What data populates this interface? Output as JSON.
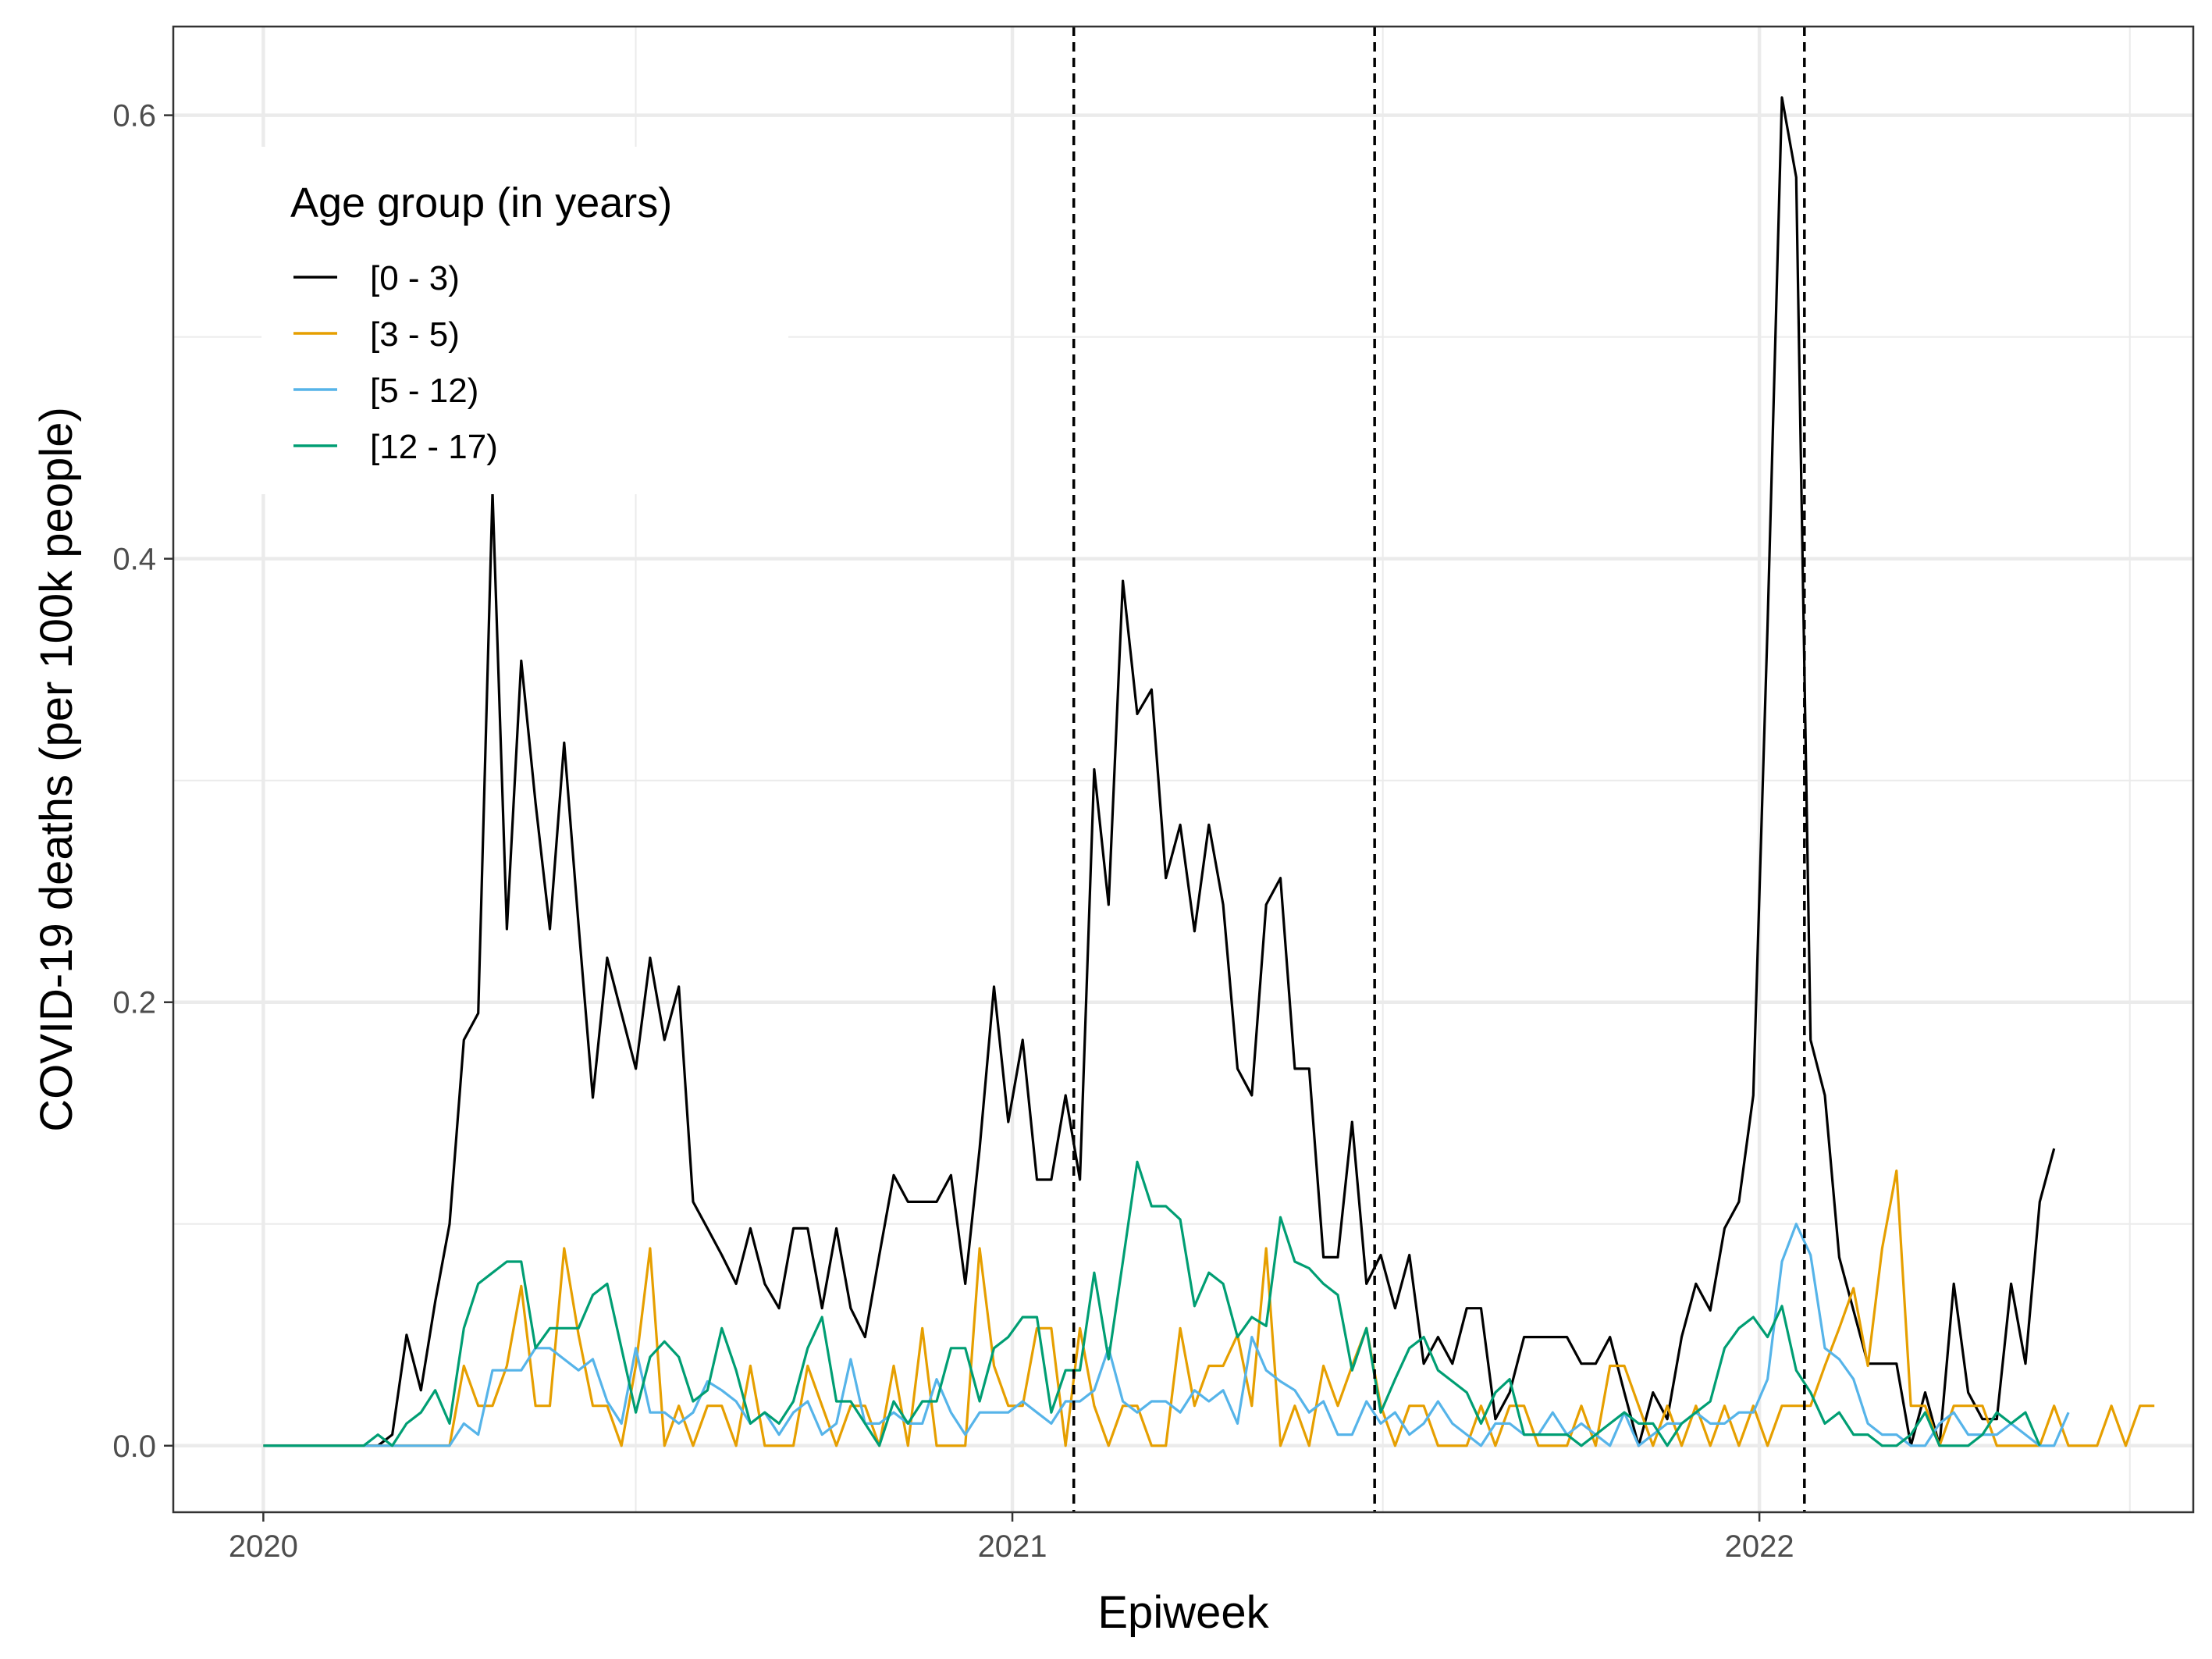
{
  "chart_data": {
    "type": "line",
    "xlabel": "Epiweek",
    "ylabel": "COVID-19 deaths (per 100k people)",
    "xlim": [
      "2019-11-18",
      "2022-08-01"
    ],
    "ylim": [
      -0.03,
      0.64
    ],
    "x_ticks": [
      {
        "date": "2020-01-01",
        "label": "2020"
      },
      {
        "date": "2021-01-01",
        "label": "2021"
      },
      {
        "date": "2022-01-01",
        "label": "2022"
      }
    ],
    "x_minor_ticks": [
      "2020-07-01",
      "2021-07-01",
      "2022-07-01"
    ],
    "y_ticks": [
      {
        "value": 0.0,
        "label": "0.0"
      },
      {
        "value": 0.2,
        "label": "0.2"
      },
      {
        "value": 0.4,
        "label": "0.4"
      },
      {
        "value": 0.6,
        "label": "0.6"
      }
    ],
    "y_minor_ticks": [
      0.1,
      0.3,
      0.5
    ],
    "grid": true,
    "vlines": [
      "2021-01-31",
      "2021-06-27",
      "2022-01-23"
    ],
    "legend": {
      "title": "Age group (in years)",
      "placement": "top-left",
      "entries": [
        "[0 - 3)",
        "[3 - 5)",
        "[5 - 12)",
        "[12 - 17)"
      ]
    },
    "x_start": "2020-01-01",
    "x_step_days": 7,
    "series": [
      {
        "name": "[0 - 3)",
        "color": "#000000",
        "values": [
          0,
          0,
          0,
          0,
          0,
          0,
          0,
          0,
          0,
          0.005,
          0.05,
          0.025,
          0.065,
          0.1,
          0.183,
          0.195,
          0.43,
          0.233,
          0.354,
          0.29,
          0.233,
          0.317,
          0.235,
          0.157,
          0.22,
          0.195,
          0.17,
          0.22,
          0.183,
          0.207,
          0.11,
          0.098,
          0.086,
          0.073,
          0.098,
          0.073,
          0.062,
          0.098,
          0.098,
          0.062,
          0.098,
          0.062,
          0.049,
          0.086,
          0.122,
          0.11,
          0.11,
          0.11,
          0.122,
          0.073,
          0.134,
          0.207,
          0.146,
          0.183,
          0.12,
          0.12,
          0.158,
          0.12,
          0.305,
          0.244,
          0.39,
          0.33,
          0.341,
          0.256,
          0.28,
          0.232,
          0.28,
          0.244,
          0.17,
          0.158,
          0.244,
          0.256,
          0.17,
          0.17,
          0.085,
          0.085,
          0.146,
          0.073,
          0.086,
          0.062,
          0.086,
          0.037,
          0.049,
          0.037,
          0.062,
          0.062,
          0.012,
          0.024,
          0.049,
          0.049,
          0.049,
          0.049,
          0.037,
          0.037,
          0.049,
          0.024,
          0.0,
          0.024,
          0.012,
          0.049,
          0.073,
          0.061,
          0.098,
          0.11,
          0.158,
          0.37,
          0.608,
          0.572,
          0.183,
          0.158,
          0.085,
          0.061,
          0.037,
          0.037,
          0.037,
          0.0,
          0.024,
          0.0,
          0.073,
          0.024,
          0.012,
          0.012,
          0.073,
          0.037,
          0.11,
          0.134
        ]
      },
      {
        "name": "[3 - 5)",
        "color": "#E69F00",
        "values": [
          0,
          0,
          0,
          0,
          0,
          0,
          0,
          0,
          0,
          0,
          0,
          0,
          0,
          0,
          0.036,
          0.018,
          0.018,
          0.036,
          0.072,
          0.018,
          0.018,
          0.089,
          0.05,
          0.018,
          0.018,
          0.0,
          0.036,
          0.089,
          0.0,
          0.018,
          0.0,
          0.018,
          0.018,
          0.0,
          0.036,
          0.0,
          0.0,
          0.0,
          0.036,
          0.018,
          0.0,
          0.018,
          0.018,
          0.0,
          0.036,
          0.0,
          0.053,
          0.0,
          0.0,
          0.0,
          0.089,
          0.036,
          0.018,
          0.018,
          0.053,
          0.053,
          0.0,
          0.053,
          0.018,
          0.0,
          0.018,
          0.018,
          0.0,
          0.0,
          0.053,
          0.018,
          0.036,
          0.036,
          0.05,
          0.018,
          0.089,
          0.0,
          0.018,
          0.0,
          0.036,
          0.018,
          0.036,
          0.053,
          0.018,
          0.0,
          0.018,
          0.018,
          0.0,
          0.0,
          0.0,
          0.018,
          0.0,
          0.018,
          0.018,
          0.0,
          0.0,
          0.0,
          0.018,
          0.0,
          0.036,
          0.036,
          0.018,
          0.0,
          0.018,
          0.0,
          0.018,
          0.0,
          0.018,
          0.0,
          0.018,
          0.0,
          0.018,
          0.018,
          0.018,
          0.036,
          0.053,
          0.071,
          0.036,
          0.089,
          0.124,
          0.018,
          0.018,
          0.0,
          0.018,
          0.018,
          0.018,
          0.0,
          0.0,
          0.0,
          0.0,
          0.018,
          0.0,
          0.0,
          0.0,
          0.018,
          0.0,
          0.018,
          0.018
        ]
      },
      {
        "name": "[5 - 12)",
        "color": "#56B4E9",
        "values": [
          0,
          0,
          0,
          0,
          0,
          0,
          0,
          0,
          0,
          0,
          0,
          0,
          0,
          0,
          0.01,
          0.005,
          0.034,
          0.034,
          0.034,
          0.044,
          0.044,
          0.039,
          0.034,
          0.039,
          0.02,
          0.01,
          0.044,
          0.015,
          0.015,
          0.01,
          0.015,
          0.029,
          0.025,
          0.02,
          0.01,
          0.015,
          0.005,
          0.015,
          0.02,
          0.005,
          0.01,
          0.039,
          0.01,
          0.01,
          0.015,
          0.01,
          0.01,
          0.03,
          0.015,
          0.005,
          0.015,
          0.015,
          0.015,
          0.02,
          0.015,
          0.01,
          0.02,
          0.02,
          0.025,
          0.044,
          0.02,
          0.015,
          0.02,
          0.02,
          0.015,
          0.025,
          0.02,
          0.025,
          0.01,
          0.049,
          0.034,
          0.029,
          0.025,
          0.015,
          0.02,
          0.005,
          0.005,
          0.02,
          0.01,
          0.015,
          0.005,
          0.01,
          0.02,
          0.01,
          0.005,
          0.0,
          0.01,
          0.01,
          0.005,
          0.005,
          0.015,
          0.005,
          0.01,
          0.005,
          0.0,
          0.015,
          0.0,
          0.005,
          0.01,
          0.01,
          0.015,
          0.01,
          0.01,
          0.015,
          0.015,
          0.03,
          0.083,
          0.1,
          0.086,
          0.044,
          0.039,
          0.03,
          0.01,
          0.005,
          0.005,
          0.0,
          0.0,
          0.01,
          0.015,
          0.005,
          0.005,
          0.005,
          0.01,
          0.005,
          0.0,
          0.0,
          0.015
        ]
      },
      {
        "name": "[12 - 17)",
        "color": "#009E73",
        "values": [
          0,
          0,
          0,
          0,
          0,
          0,
          0,
          0,
          0.005,
          0.0,
          0.01,
          0.015,
          0.025,
          0.01,
          0.053,
          0.073,
          0.078,
          0.083,
          0.083,
          0.044,
          0.053,
          0.053,
          0.053,
          0.068,
          0.073,
          0.044,
          0.015,
          0.04,
          0.047,
          0.04,
          0.02,
          0.025,
          0.053,
          0.034,
          0.01,
          0.015,
          0.01,
          0.02,
          0.044,
          0.058,
          0.02,
          0.02,
          0.01,
          0.0,
          0.02,
          0.01,
          0.02,
          0.02,
          0.044,
          0.044,
          0.02,
          0.044,
          0.049,
          0.058,
          0.058,
          0.015,
          0.034,
          0.034,
          0.078,
          0.039,
          0.083,
          0.128,
          0.108,
          0.108,
          0.102,
          0.063,
          0.078,
          0.073,
          0.049,
          0.058,
          0.054,
          0.103,
          0.083,
          0.08,
          0.073,
          0.068,
          0.034,
          0.053,
          0.015,
          0.03,
          0.044,
          0.049,
          0.034,
          0.029,
          0.024,
          0.01,
          0.024,
          0.03,
          0.005,
          0.005,
          0.005,
          0.005,
          0.0,
          0.005,
          0.01,
          0.015,
          0.01,
          0.01,
          0.0,
          0.01,
          0.015,
          0.02,
          0.044,
          0.053,
          0.058,
          0.049,
          0.063,
          0.034,
          0.024,
          0.01,
          0.015,
          0.005,
          0.005,
          0.0,
          0.0,
          0.005,
          0.015,
          0.0,
          0.0,
          0.0,
          0.005,
          0.015,
          0.01,
          0.015,
          0.0
        ]
      }
    ]
  }
}
